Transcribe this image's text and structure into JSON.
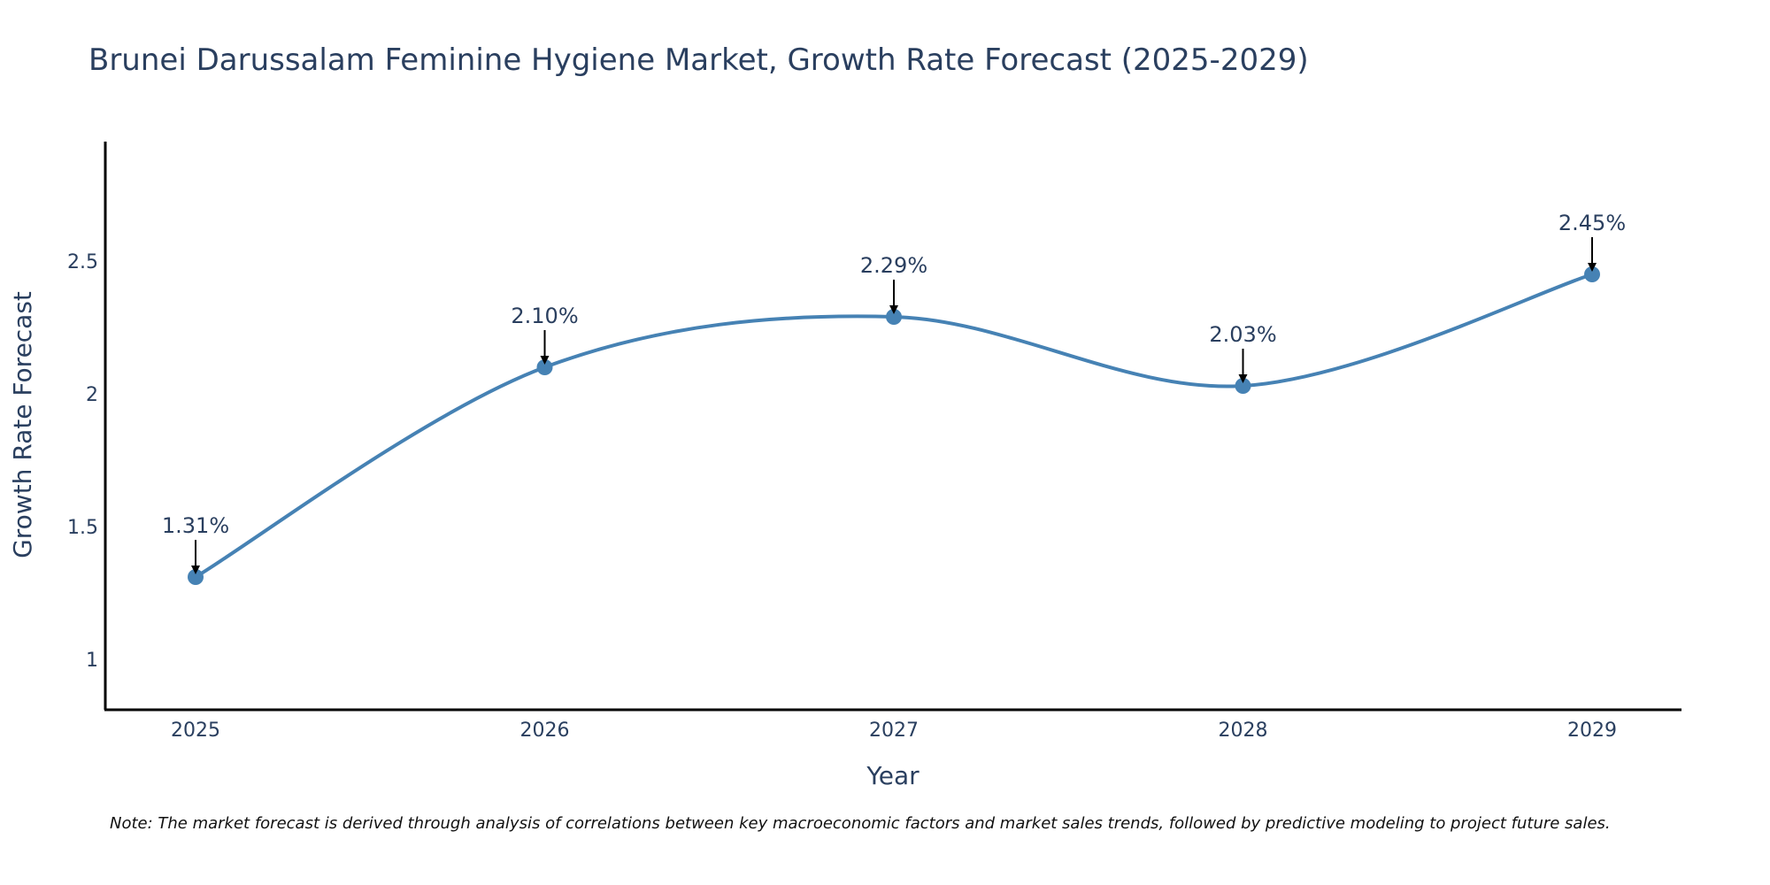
{
  "chart_data": {
    "type": "line",
    "title": "Brunei Darussalam Feminine Hygiene Market, Growth Rate Forecast (2025-2029)",
    "xlabel": "Year",
    "ylabel": "Growth Rate Forecast",
    "categories": [
      "2025",
      "2026",
      "2027",
      "2028",
      "2029"
    ],
    "values": [
      1.31,
      2.1,
      2.29,
      2.03,
      2.45
    ],
    "data_labels": [
      "1.31%",
      "2.10%",
      "2.29%",
      "2.03%",
      "2.45%"
    ],
    "yticks": [
      1,
      1.5,
      2,
      2.5
    ],
    "ytick_labels": [
      "1",
      "1.5",
      "2",
      "2.5"
    ],
    "ylim": [
      0.81,
      2.95
    ],
    "grid": false,
    "legend": "none",
    "line_color": "#4682b4",
    "arrow_color": "#000000",
    "smoothing": "spline"
  },
  "note": "Note: The market forecast is derived through analysis of correlations between key macroeconomic factors and market sales trends, followed by predictive modeling to project future sales."
}
